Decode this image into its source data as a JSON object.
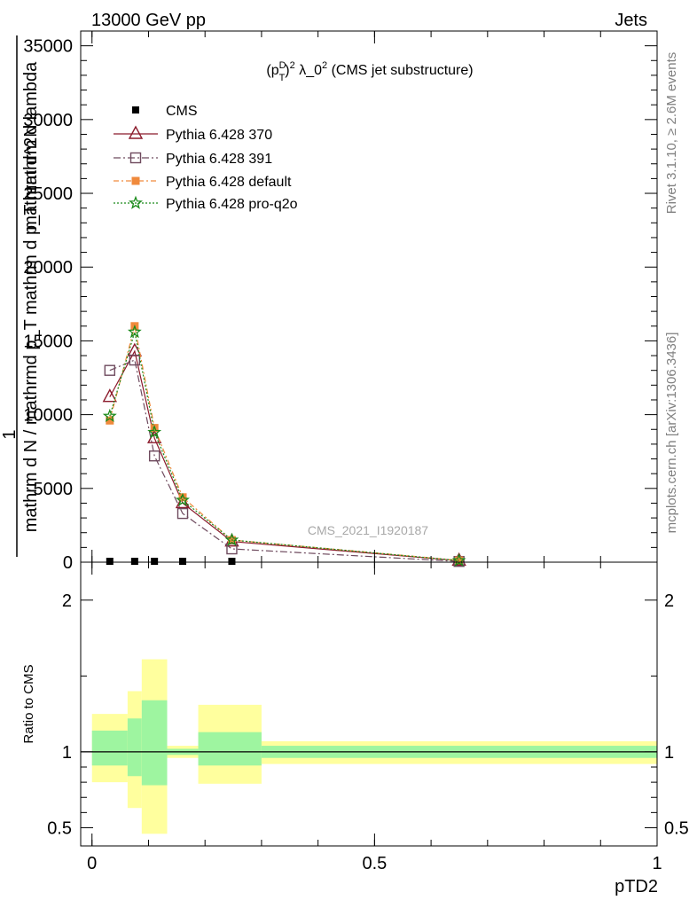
{
  "header": {
    "left": "13000 GeV pp",
    "right": "Jets"
  },
  "side_labels": {
    "rivet": "Rivet 3.1.10, ≥ 2.6M events",
    "mcplots": "mcplots.cern.ch [arXiv:1306.3436]"
  },
  "watermark": "CMS_2021_I1920187",
  "colors": {
    "cms": "#000000",
    "p370": "#8b1a2b",
    "p391": "#6e4a5e",
    "pdefault": "#f08a3c",
    "pq2o": "#1a8a1a",
    "band_inner": "#9ef5a0",
    "band_outer": "#ffff9e"
  },
  "chart_data": [
    {
      "type": "line",
      "title": "(p_T^D)^2 λ_0^2 (CMS jet substructure)",
      "title_parts": {
        "base": "(p",
        "sup1": "D",
        "sub1": "T",
        "mid": ")",
        "sup2": "2",
        "lambda": " λ_0",
        "sup3": "2",
        "rest": " (CMS jet substructure)"
      },
      "ylabel_top": "1",
      "ylabel_numerator": "mathrm d^2N",
      "ylabel_denominator": "mathrm d N / mathrmd p_T mathrm d p_T mathrm d lambda",
      "xlim": [
        -0.02,
        1.0
      ],
      "ylim": [
        0,
        36000
      ],
      "yticks": [
        0,
        5000,
        10000,
        15000,
        20000,
        25000,
        30000,
        35000
      ],
      "ytick_labels": [
        "0",
        "5000",
        "10000",
        "15000",
        "20000",
        "25000",
        "30000",
        "35000"
      ],
      "legend_position": "top-left",
      "legend": [
        "CMS",
        "Pythia 6.428 370",
        "Pythia 6.428 391",
        "Pythia 6.428 default",
        "Pythia 6.428 pro-q2o"
      ],
      "series": [
        {
          "name": "CMS",
          "style": "square-filled",
          "x": [
            0.0315,
            0.0755,
            0.1105,
            0.1605,
            0.2475,
            0.6495
          ],
          "y": [
            0,
            0,
            0,
            0,
            0,
            0
          ]
        },
        {
          "name": "Pythia 6.428 370",
          "style": "triangle-open-solid",
          "x": [
            0.0315,
            0.0755,
            0.1105,
            0.1605,
            0.2475,
            0.6495
          ],
          "y": [
            11200,
            14300,
            8400,
            4000,
            1400,
            100
          ]
        },
        {
          "name": "Pythia 6.428 391",
          "style": "square-open-dashdot",
          "x": [
            0.0315,
            0.0755,
            0.1105,
            0.1605,
            0.2475,
            0.6495
          ],
          "y": [
            13000,
            13700,
            7200,
            3300,
            900,
            50
          ]
        },
        {
          "name": "Pythia 6.428 default",
          "style": "square-filled-dashdot",
          "x": [
            0.0315,
            0.0755,
            0.1105,
            0.1605,
            0.2475,
            0.6495
          ],
          "y": [
            9600,
            16000,
            9100,
            4400,
            1500,
            120
          ]
        },
        {
          "name": "Pythia 6.428 pro-q2o",
          "style": "star-dotted",
          "x": [
            0.0315,
            0.0755,
            0.1105,
            0.1605,
            0.2475,
            0.6495
          ],
          "y": [
            9900,
            15600,
            8800,
            4200,
            1500,
            110
          ]
        }
      ]
    },
    {
      "type": "area",
      "ylabel": "Ratio to CMS",
      "xlabel": "pTD2",
      "xlim": [
        -0.02,
        1.0
      ],
      "ylim": [
        0.38,
        2.25
      ],
      "yticks": [
        0.5,
        1,
        2
      ],
      "ytick_labels": [
        "0.5",
        "1",
        "2"
      ],
      "xticks": [
        0,
        0.5,
        1
      ],
      "xtick_labels": [
        "0",
        "0.5",
        "1"
      ],
      "reference_line": 1,
      "bins": [
        {
          "x": [
            0.0,
            0.063
          ],
          "outer": [
            0.8,
            1.25
          ],
          "inner": [
            0.91,
            1.14
          ]
        },
        {
          "x": [
            0.063,
            0.088
          ],
          "outer": [
            0.63,
            1.4
          ],
          "inner": [
            0.84,
            1.22
          ]
        },
        {
          "x": [
            0.088,
            0.133
          ],
          "outer": [
            0.46,
            1.61
          ],
          "inner": [
            0.78,
            1.34
          ]
        },
        {
          "x": [
            0.133,
            0.188
          ],
          "outer": [
            0.96,
            1.04
          ],
          "inner": [
            0.98,
            1.02
          ]
        },
        {
          "x": [
            0.188,
            0.3
          ],
          "outer": [
            0.79,
            1.31
          ],
          "inner": [
            0.91,
            1.13
          ]
        },
        {
          "x": [
            0.3,
            1.0
          ],
          "outer": [
            0.92,
            1.07
          ],
          "inner": [
            0.96,
            1.04
          ]
        }
      ]
    }
  ]
}
